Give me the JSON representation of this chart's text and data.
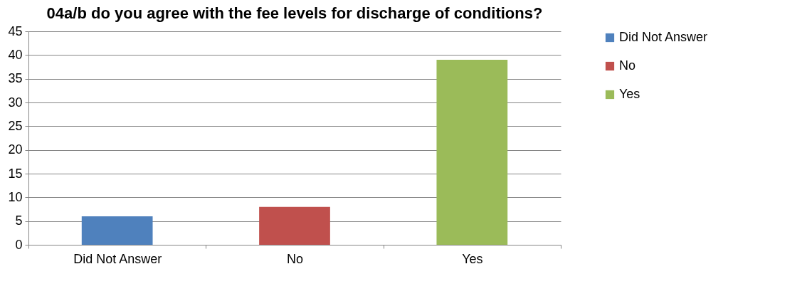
{
  "chart_data": {
    "type": "bar",
    "title": "04a/b do you agree with the fee levels for discharge of conditions?",
    "categories": [
      "Did Not Answer",
      "No",
      "Yes"
    ],
    "series": [
      {
        "name": "Did Not Answer",
        "color": "#4f81bd",
        "values": [
          6,
          null,
          null
        ]
      },
      {
        "name": "No",
        "color": "#c0504d",
        "values": [
          null,
          8,
          null
        ]
      },
      {
        "name": "Yes",
        "color": "#9bbb59",
        "values": [
          null,
          null,
          39
        ]
      }
    ],
    "ylim": [
      0,
      45
    ],
    "yticks": [
      0,
      5,
      10,
      15,
      20,
      25,
      30,
      35,
      40,
      45
    ],
    "grid": "y",
    "legend": "right"
  }
}
